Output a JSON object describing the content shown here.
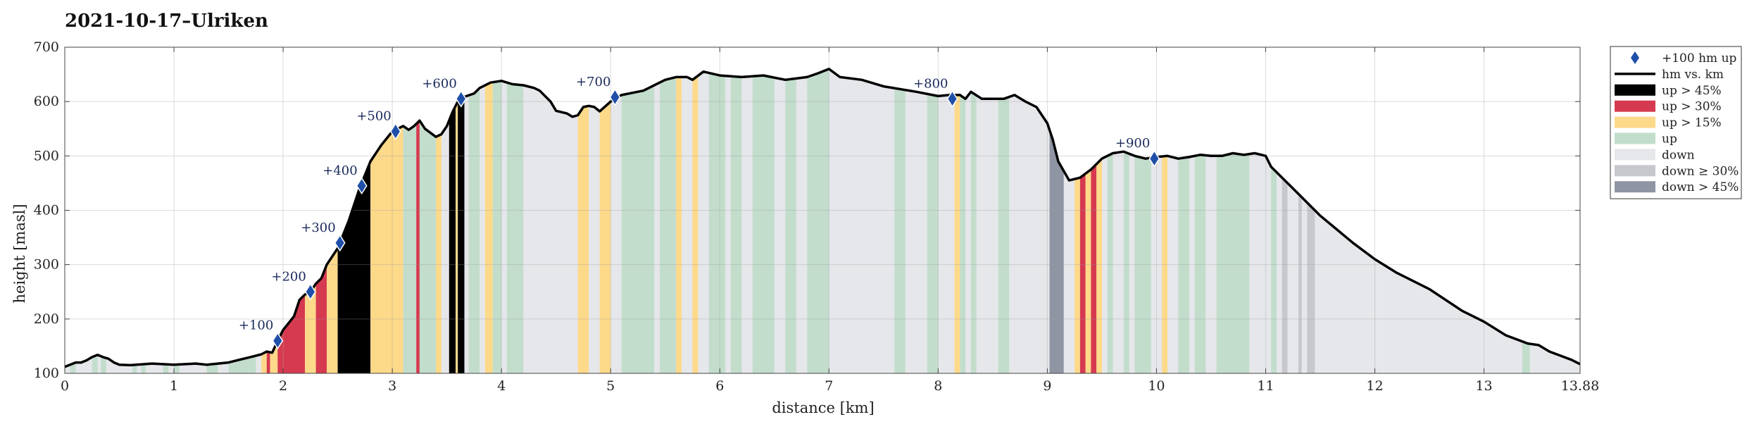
{
  "chart_data": {
    "type": "area",
    "title": "2021-10-17–Ulriken",
    "xlabel": "distance [km]",
    "ylabel": "height [masl]",
    "xlim": [
      0,
      13.88
    ],
    "ylim": [
      100,
      700
    ],
    "xticks": [
      0,
      1,
      2,
      3,
      4,
      5,
      6,
      7,
      8,
      9,
      10,
      11,
      12,
      13,
      13.88
    ],
    "xtick_labels": [
      "0",
      "1",
      "2",
      "3",
      "4",
      "5",
      "6",
      "7",
      "8",
      "9",
      "10",
      "11",
      "12",
      "13",
      "13.88"
    ],
    "yticks": [
      100,
      200,
      300,
      400,
      500,
      600,
      700
    ],
    "ytick_labels": [
      "100",
      "200",
      "300",
      "400",
      "500",
      "600",
      "700"
    ],
    "grid": true,
    "legend_position": "outside-right",
    "colors": {
      "line": "#000000",
      "marker": "#1f4fa8",
      "up45": "#000000",
      "up30": "#d63a50",
      "up15": "#fdd98a",
      "up": "#c2ddcc",
      "down": "#e6e7ea",
      "down30": "#c6c8ce",
      "down45": "#9095a4"
    },
    "legend": [
      {
        "key": "marker",
        "label": "+100 hm up"
      },
      {
        "key": "line",
        "label": "hm vs. km"
      },
      {
        "key": "up45",
        "label": "up > 45%"
      },
      {
        "key": "up30",
        "label": "up > 30%"
      },
      {
        "key": "up15",
        "label": "up > 15%"
      },
      {
        "key": "up",
        "label": "up"
      },
      {
        "key": "down",
        "label": "down"
      },
      {
        "key": "down30",
        "label": "down ≥ 30%"
      },
      {
        "key": "down45",
        "label": "down > 45%"
      }
    ],
    "profile": [
      [
        0,
        112
      ],
      [
        0.1,
        120
      ],
      [
        0.15,
        120
      ],
      [
        0.2,
        124
      ],
      [
        0.25,
        130
      ],
      [
        0.3,
        134
      ],
      [
        0.35,
        130
      ],
      [
        0.4,
        127
      ],
      [
        0.45,
        120
      ],
      [
        0.5,
        116
      ],
      [
        0.6,
        115
      ],
      [
        0.8,
        118
      ],
      [
        1.0,
        116
      ],
      [
        1.2,
        118
      ],
      [
        1.3,
        116
      ],
      [
        1.5,
        120
      ],
      [
        1.6,
        125
      ],
      [
        1.7,
        130
      ],
      [
        1.8,
        135
      ],
      [
        1.85,
        140
      ],
      [
        1.9,
        138
      ],
      [
        1.95,
        160
      ],
      [
        2.0,
        180
      ],
      [
        2.1,
        205
      ],
      [
        2.15,
        235
      ],
      [
        2.2,
        245
      ],
      [
        2.25,
        250
      ],
      [
        2.3,
        265
      ],
      [
        2.35,
        275
      ],
      [
        2.4,
        300
      ],
      [
        2.5,
        330
      ],
      [
        2.6,
        380
      ],
      [
        2.7,
        440
      ],
      [
        2.8,
        490
      ],
      [
        2.9,
        520
      ],
      [
        3.0,
        545
      ],
      [
        3.1,
        555
      ],
      [
        3.15,
        548
      ],
      [
        3.2,
        555
      ],
      [
        3.25,
        565
      ],
      [
        3.3,
        550
      ],
      [
        3.4,
        535
      ],
      [
        3.45,
        540
      ],
      [
        3.5,
        555
      ],
      [
        3.55,
        580
      ],
      [
        3.6,
        600
      ],
      [
        3.65,
        608
      ],
      [
        3.75,
        615
      ],
      [
        3.8,
        625
      ],
      [
        3.9,
        635
      ],
      [
        4.0,
        638
      ],
      [
        4.1,
        632
      ],
      [
        4.2,
        630
      ],
      [
        4.3,
        625
      ],
      [
        4.35,
        620
      ],
      [
        4.45,
        600
      ],
      [
        4.5,
        583
      ],
      [
        4.6,
        578
      ],
      [
        4.65,
        572
      ],
      [
        4.7,
        575
      ],
      [
        4.75,
        590
      ],
      [
        4.8,
        592
      ],
      [
        4.85,
        590
      ],
      [
        4.9,
        582
      ],
      [
        5.0,
        600
      ],
      [
        5.1,
        612
      ],
      [
        5.3,
        620
      ],
      [
        5.5,
        640
      ],
      [
        5.6,
        645
      ],
      [
        5.7,
        645
      ],
      [
        5.75,
        640
      ],
      [
        5.85,
        655
      ],
      [
        6.0,
        648
      ],
      [
        6.2,
        645
      ],
      [
        6.4,
        648
      ],
      [
        6.6,
        640
      ],
      [
        6.8,
        645
      ],
      [
        6.9,
        652
      ],
      [
        7.0,
        660
      ],
      [
        7.1,
        645
      ],
      [
        7.3,
        640
      ],
      [
        7.5,
        628
      ],
      [
        7.8,
        618
      ],
      [
        8.0,
        610
      ],
      [
        8.1,
        612
      ],
      [
        8.2,
        612
      ],
      [
        8.25,
        605
      ],
      [
        8.3,
        618
      ],
      [
        8.4,
        605
      ],
      [
        8.5,
        605
      ],
      [
        8.6,
        605
      ],
      [
        8.7,
        612
      ],
      [
        8.8,
        600
      ],
      [
        8.9,
        590
      ],
      [
        9.0,
        560
      ],
      [
        9.05,
        530
      ],
      [
        9.1,
        490
      ],
      [
        9.2,
        455
      ],
      [
        9.3,
        460
      ],
      [
        9.4,
        475
      ],
      [
        9.5,
        495
      ],
      [
        9.6,
        505
      ],
      [
        9.7,
        508
      ],
      [
        9.8,
        500
      ],
      [
        9.9,
        495
      ],
      [
        10.0,
        498
      ],
      [
        10.1,
        500
      ],
      [
        10.2,
        495
      ],
      [
        10.3,
        498
      ],
      [
        10.4,
        502
      ],
      [
        10.5,
        500
      ],
      [
        10.6,
        500
      ],
      [
        10.7,
        505
      ],
      [
        10.8,
        502
      ],
      [
        10.9,
        505
      ],
      [
        11.0,
        500
      ],
      [
        11.05,
        480
      ],
      [
        11.2,
        450
      ],
      [
        11.3,
        430
      ],
      [
        11.5,
        390
      ],
      [
        11.8,
        340
      ],
      [
        12.0,
        310
      ],
      [
        12.2,
        285
      ],
      [
        12.5,
        255
      ],
      [
        12.8,
        215
      ],
      [
        13.0,
        195
      ],
      [
        13.2,
        170
      ],
      [
        13.4,
        155
      ],
      [
        13.5,
        152
      ],
      [
        13.6,
        140
      ],
      [
        13.8,
        125
      ],
      [
        13.88,
        117
      ]
    ],
    "segments": [
      [
        0.05,
        0.1,
        "up"
      ],
      [
        0.25,
        0.3,
        "up"
      ],
      [
        0.33,
        0.38,
        "up"
      ],
      [
        0.62,
        0.66,
        "up"
      ],
      [
        0.7,
        0.74,
        "up"
      ],
      [
        0.9,
        0.95,
        "up"
      ],
      [
        1.0,
        1.05,
        "up"
      ],
      [
        1.3,
        1.4,
        "up"
      ],
      [
        1.5,
        1.75,
        "up"
      ],
      [
        1.8,
        1.85,
        "up15"
      ],
      [
        1.85,
        1.88,
        "up30"
      ],
      [
        1.88,
        1.95,
        "up15"
      ],
      [
        1.95,
        2.0,
        "up30"
      ],
      [
        2.0,
        2.2,
        "up30"
      ],
      [
        2.2,
        2.3,
        "up15"
      ],
      [
        2.3,
        2.4,
        "up30"
      ],
      [
        2.4,
        2.5,
        "up15"
      ],
      [
        2.5,
        2.8,
        "up45"
      ],
      [
        2.8,
        3.1,
        "up15"
      ],
      [
        3.1,
        3.22,
        "up"
      ],
      [
        3.22,
        3.25,
        "up30"
      ],
      [
        3.25,
        3.4,
        "up"
      ],
      [
        3.4,
        3.45,
        "up15"
      ],
      [
        3.52,
        3.58,
        "up45"
      ],
      [
        3.58,
        3.6,
        "up15"
      ],
      [
        3.6,
        3.66,
        "up45"
      ],
      [
        3.7,
        3.8,
        "up"
      ],
      [
        3.85,
        3.92,
        "up15"
      ],
      [
        3.92,
        4.0,
        "up"
      ],
      [
        4.05,
        4.12,
        "up"
      ],
      [
        4.12,
        4.2,
        "up"
      ],
      [
        4.7,
        4.8,
        "up15"
      ],
      [
        4.9,
        5.0,
        "up15"
      ],
      [
        5.1,
        5.4,
        "up"
      ],
      [
        5.45,
        5.6,
        "up"
      ],
      [
        5.6,
        5.65,
        "up15"
      ],
      [
        5.75,
        5.8,
        "up15"
      ],
      [
        5.9,
        6.05,
        "up"
      ],
      [
        6.1,
        6.2,
        "up"
      ],
      [
        6.3,
        6.5,
        "up"
      ],
      [
        6.6,
        6.7,
        "up"
      ],
      [
        6.8,
        7.0,
        "up"
      ],
      [
        7.6,
        7.7,
        "up"
      ],
      [
        7.9,
        8.0,
        "up"
      ],
      [
        8.15,
        8.2,
        "up15"
      ],
      [
        8.2,
        8.25,
        "up"
      ],
      [
        8.3,
        8.35,
        "up"
      ],
      [
        8.55,
        8.65,
        "up"
      ],
      [
        9.02,
        9.15,
        "down45"
      ],
      [
        9.25,
        9.3,
        "up15"
      ],
      [
        9.3,
        9.35,
        "up30"
      ],
      [
        9.35,
        9.4,
        "up15"
      ],
      [
        9.4,
        9.45,
        "up30"
      ],
      [
        9.45,
        9.5,
        "up15"
      ],
      [
        9.55,
        9.6,
        "up"
      ],
      [
        9.7,
        9.75,
        "up"
      ],
      [
        9.8,
        9.95,
        "up"
      ],
      [
        10.05,
        10.1,
        "up15"
      ],
      [
        10.2,
        10.3,
        "up"
      ],
      [
        10.35,
        10.45,
        "up"
      ],
      [
        10.55,
        10.85,
        "up"
      ],
      [
        11.05,
        11.1,
        "up"
      ],
      [
        11.15,
        11.2,
        "down30"
      ],
      [
        11.3,
        11.33,
        "down30"
      ],
      [
        11.38,
        11.45,
        "down30"
      ],
      [
        13.35,
        13.42,
        "up"
      ]
    ],
    "markers": [
      {
        "x": 1.95,
        "y": 160,
        "label": "+100"
      },
      {
        "x": 2.25,
        "y": 250,
        "label": "+200"
      },
      {
        "x": 2.52,
        "y": 340,
        "label": "+300"
      },
      {
        "x": 2.72,
        "y": 445,
        "label": "+400"
      },
      {
        "x": 3.03,
        "y": 545,
        "label": "+500"
      },
      {
        "x": 3.63,
        "y": 605,
        "label": "+600"
      },
      {
        "x": 5.04,
        "y": 608,
        "label": "+700"
      },
      {
        "x": 8.13,
        "y": 605,
        "label": "+800"
      },
      {
        "x": 9.98,
        "y": 495,
        "label": "+900"
      }
    ]
  }
}
